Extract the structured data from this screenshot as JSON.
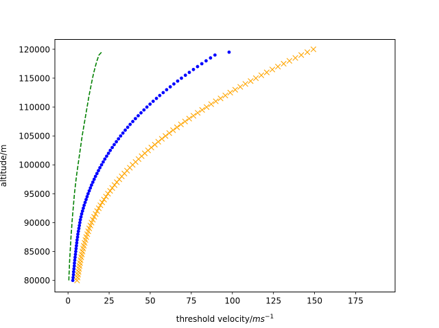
{
  "chart_data": {
    "type": "line",
    "title": "",
    "xlabel": "threshold velocity/",
    "xlabel_unit": "ms",
    "xlabel_exp": "−1",
    "ylabel": "altitude/m",
    "xlim": [
      -8,
      199
    ],
    "ylim": [
      78000,
      121700
    ],
    "xticks": [
      0,
      25,
      50,
      75,
      100,
      125,
      150,
      175
    ],
    "yticks": [
      80000,
      85000,
      90000,
      95000,
      100000,
      105000,
      110000,
      115000,
      120000
    ],
    "grid": false,
    "legend": "none",
    "series": [
      {
        "style": "dashed-line",
        "color": "#008000",
        "points": [
          [
            0.5,
            80000
          ],
          [
            0.6,
            81000
          ],
          [
            0.8,
            82000
          ],
          [
            0.9,
            83000
          ],
          [
            1.1,
            84000
          ],
          [
            1.3,
            85000
          ],
          [
            1.5,
            86000
          ],
          [
            1.7,
            87000
          ],
          [
            1.9,
            88000
          ],
          [
            2.2,
            89000
          ],
          [
            2.4,
            90000
          ],
          [
            2.7,
            91000
          ],
          [
            3.0,
            92000
          ],
          [
            3.3,
            93000
          ],
          [
            3.6,
            94000
          ],
          [
            3.9,
            95000
          ],
          [
            4.3,
            96000
          ],
          [
            4.7,
            97000
          ],
          [
            5.1,
            98000
          ],
          [
            5.6,
            99000
          ],
          [
            6.1,
            100000
          ],
          [
            6.6,
            101000
          ],
          [
            7.1,
            102000
          ],
          [
            7.6,
            103000
          ],
          [
            8.1,
            104000
          ],
          [
            8.6,
            105000
          ],
          [
            9.2,
            106000
          ],
          [
            9.8,
            107000
          ],
          [
            10.4,
            108000
          ],
          [
            11.0,
            109000
          ],
          [
            11.6,
            110000
          ],
          [
            12.2,
            111000
          ],
          [
            12.8,
            112000
          ],
          [
            13.5,
            113000
          ],
          [
            14.2,
            114000
          ],
          [
            14.9,
            115000
          ],
          [
            15.7,
            116000
          ],
          [
            16.6,
            117000
          ],
          [
            17.6,
            118000
          ],
          [
            18.8,
            119000
          ],
          [
            20.4,
            119500
          ]
        ]
      },
      {
        "style": "dots",
        "color": "#0000ff",
        "points": [
          [
            2.9,
            80000
          ],
          [
            3.1,
            80500
          ],
          [
            3.3,
            81000
          ],
          [
            3.4,
            81500
          ],
          [
            3.6,
            82000
          ],
          [
            3.8,
            82500
          ],
          [
            3.9,
            83000
          ],
          [
            4.1,
            83500
          ],
          [
            4.3,
            84000
          ],
          [
            4.5,
            84500
          ],
          [
            4.7,
            85000
          ],
          [
            4.9,
            85500
          ],
          [
            5.1,
            86000
          ],
          [
            5.3,
            86500
          ],
          [
            5.5,
            87000
          ],
          [
            5.8,
            87500
          ],
          [
            6.0,
            88000
          ],
          [
            6.3,
            88500
          ],
          [
            6.6,
            89000
          ],
          [
            6.9,
            89500
          ],
          [
            7.2,
            90000
          ],
          [
            7.5,
            90500
          ],
          [
            7.9,
            91000
          ],
          [
            8.3,
            91500
          ],
          [
            8.8,
            92000
          ],
          [
            9.3,
            92500
          ],
          [
            9.8,
            93000
          ],
          [
            10.4,
            93500
          ],
          [
            11.0,
            94000
          ],
          [
            11.6,
            94500
          ],
          [
            12.2,
            95000
          ],
          [
            12.9,
            95500
          ],
          [
            13.6,
            96000
          ],
          [
            14.3,
            96500
          ],
          [
            15.1,
            97000
          ],
          [
            15.9,
            97500
          ],
          [
            16.7,
            98000
          ],
          [
            17.6,
            98500
          ],
          [
            18.5,
            99000
          ],
          [
            19.4,
            99500
          ],
          [
            20.4,
            100000
          ],
          [
            21.4,
            100500
          ],
          [
            22.4,
            101000
          ],
          [
            23.5,
            101500
          ],
          [
            24.6,
            102000
          ],
          [
            25.7,
            102500
          ],
          [
            26.9,
            103000
          ],
          [
            28.1,
            103500
          ],
          [
            29.4,
            104000
          ],
          [
            30.7,
            104500
          ],
          [
            32.0,
            105000
          ],
          [
            33.4,
            105500
          ],
          [
            34.8,
            106000
          ],
          [
            36.3,
            106500
          ],
          [
            37.8,
            107000
          ],
          [
            39.4,
            107500
          ],
          [
            41.0,
            108000
          ],
          [
            42.7,
            108500
          ],
          [
            44.4,
            109000
          ],
          [
            46.2,
            109500
          ],
          [
            48.0,
            110000
          ],
          [
            49.9,
            110500
          ],
          [
            51.8,
            111000
          ],
          [
            53.8,
            111500
          ],
          [
            55.8,
            112000
          ],
          [
            57.9,
            112500
          ],
          [
            60.0,
            113000
          ],
          [
            62.2,
            113500
          ],
          [
            64.4,
            114000
          ],
          [
            66.7,
            114500
          ],
          [
            69.0,
            115000
          ],
          [
            71.4,
            115500
          ],
          [
            73.8,
            116000
          ],
          [
            76.3,
            116500
          ],
          [
            78.8,
            117000
          ],
          [
            81.4,
            117500
          ],
          [
            84.0,
            118000
          ],
          [
            86.7,
            118500
          ],
          [
            89.4,
            119000
          ],
          [
            98.0,
            119500
          ]
        ]
      },
      {
        "style": "x-markers",
        "color": "#ffa500",
        "points": [
          [
            5.5,
            80000
          ],
          [
            5.8,
            80500
          ],
          [
            6.1,
            81000
          ],
          [
            6.4,
            81500
          ],
          [
            6.7,
            82000
          ],
          [
            7.0,
            82500
          ],
          [
            7.3,
            83000
          ],
          [
            7.6,
            83500
          ],
          [
            8.0,
            84000
          ],
          [
            8.4,
            84500
          ],
          [
            8.8,
            85000
          ],
          [
            9.2,
            85500
          ],
          [
            9.6,
            86000
          ],
          [
            10.1,
            86500
          ],
          [
            10.6,
            87000
          ],
          [
            11.1,
            87500
          ],
          [
            11.7,
            88000
          ],
          [
            12.3,
            88500
          ],
          [
            12.9,
            89000
          ],
          [
            13.6,
            89500
          ],
          [
            14.3,
            90000
          ],
          [
            15.1,
            90500
          ],
          [
            15.9,
            91000
          ],
          [
            16.8,
            91500
          ],
          [
            17.7,
            92000
          ],
          [
            18.7,
            92500
          ],
          [
            19.7,
            93000
          ],
          [
            20.8,
            93500
          ],
          [
            21.9,
            94000
          ],
          [
            23.1,
            94500
          ],
          [
            24.3,
            95000
          ],
          [
            25.6,
            95500
          ],
          [
            26.9,
            96000
          ],
          [
            28.3,
            96500
          ],
          [
            29.7,
            97000
          ],
          [
            31.2,
            97500
          ],
          [
            32.7,
            98000
          ],
          [
            34.3,
            98500
          ],
          [
            35.9,
            99000
          ],
          [
            37.6,
            99500
          ],
          [
            39.3,
            100000
          ],
          [
            41.1,
            100500
          ],
          [
            42.9,
            101000
          ],
          [
            44.8,
            101500
          ],
          [
            46.7,
            102000
          ],
          [
            48.7,
            102500
          ],
          [
            50.7,
            103000
          ],
          [
            52.8,
            103500
          ],
          [
            54.9,
            104000
          ],
          [
            57.1,
            104500
          ],
          [
            59.3,
            105000
          ],
          [
            61.6,
            105500
          ],
          [
            63.9,
            106000
          ],
          [
            66.3,
            106500
          ],
          [
            68.7,
            107000
          ],
          [
            71.2,
            107500
          ],
          [
            73.7,
            108000
          ],
          [
            76.3,
            108500
          ],
          [
            78.9,
            109000
          ],
          [
            81.6,
            109500
          ],
          [
            84.3,
            110000
          ],
          [
            87.1,
            110500
          ],
          [
            89.9,
            111000
          ],
          [
            92.8,
            111500
          ],
          [
            95.7,
            112000
          ],
          [
            98.7,
            112500
          ],
          [
            101.7,
            113000
          ],
          [
            104.8,
            113500
          ],
          [
            107.9,
            114000
          ],
          [
            111.1,
            114500
          ],
          [
            114.3,
            115000
          ],
          [
            117.6,
            115500
          ],
          [
            120.9,
            116000
          ],
          [
            124.3,
            116500
          ],
          [
            127.7,
            117000
          ],
          [
            131.2,
            117500
          ],
          [
            134.7,
            118000
          ],
          [
            138.3,
            118500
          ],
          [
            141.9,
            119000
          ],
          [
            145.6,
            119500
          ],
          [
            149.3,
            120000
          ]
        ]
      }
    ]
  }
}
